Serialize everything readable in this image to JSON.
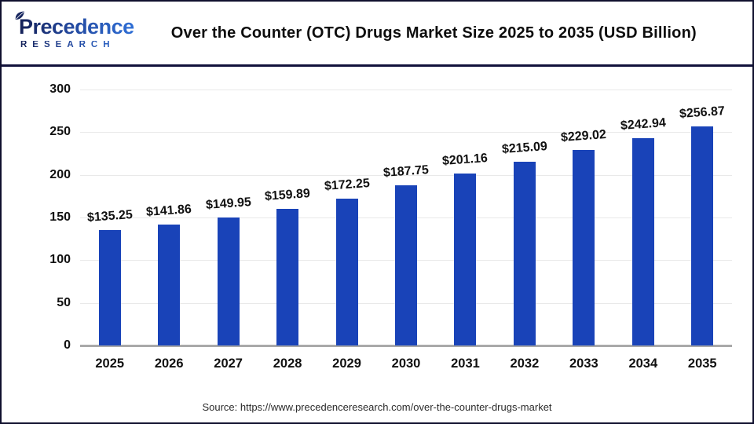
{
  "header": {
    "logo": {
      "line1": "Precedence",
      "line2": "RESEARCH"
    },
    "title": "Over the Counter (OTC) Drugs Market Size 2025 to 2035 (USD Billion)"
  },
  "chart_data": {
    "type": "bar",
    "categories": [
      "2025",
      "2026",
      "2027",
      "2028",
      "2029",
      "2030",
      "2031",
      "2032",
      "2033",
      "2034",
      "2035"
    ],
    "values": [
      135.25,
      141.86,
      149.95,
      159.89,
      172.25,
      187.75,
      201.16,
      215.09,
      229.02,
      242.94,
      256.87
    ],
    "value_prefix": "$",
    "title": "Over the Counter (OTC) Drugs Market Size 2025 to 2035 (USD Billion)",
    "xlabel": "",
    "ylabel": "",
    "ylim": [
      0,
      300
    ],
    "yticks": [
      0,
      50,
      100,
      150,
      200,
      250,
      300
    ],
    "grid": true,
    "legend_position": "none",
    "bar_color": "#1943b8"
  },
  "footer": {
    "source": "Source: https://www.precedenceresearch.com/over-the-counter-drugs-market"
  },
  "colors": {
    "bar": "#1943b8",
    "header_divider": "#12123b",
    "gridline": "#e9e9e9",
    "axis_line": "#a9a9a9",
    "logo_dark": "#141f55",
    "logo_light": "#2f6fd6"
  }
}
